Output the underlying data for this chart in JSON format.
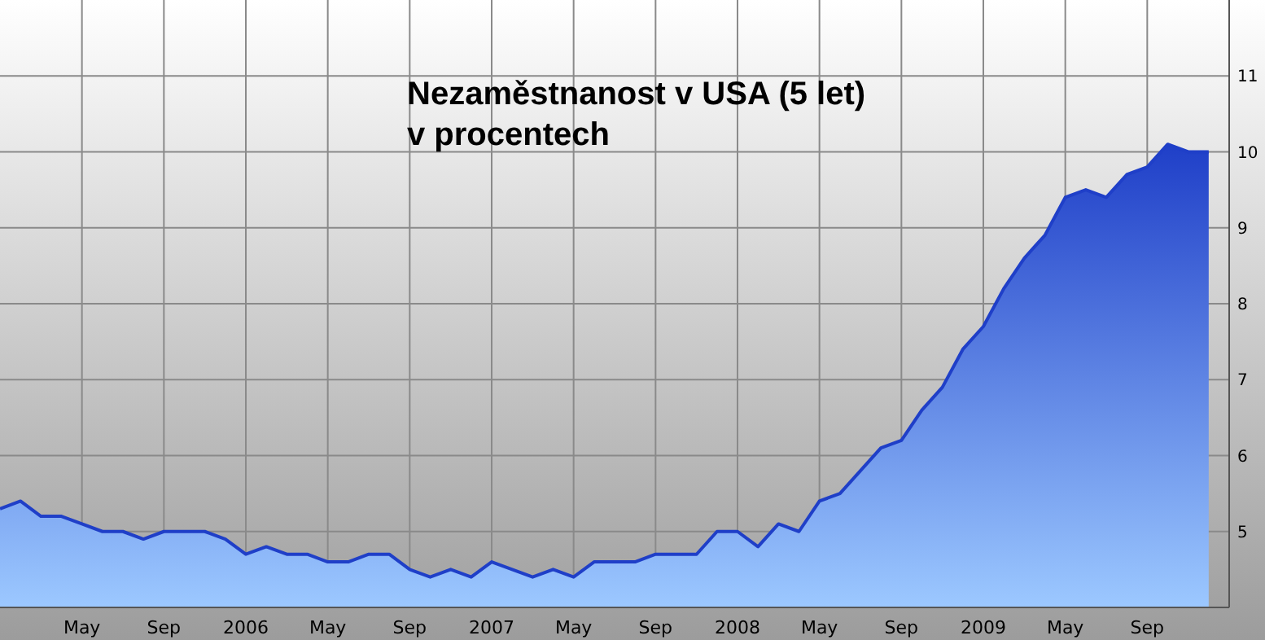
{
  "chart_data": {
    "type": "area",
    "title": "Nezaměstnanost v USA (5 let)",
    "subtitle": "v procentech",
    "x": [
      "2005-01",
      "2005-02",
      "2005-03",
      "2005-04",
      "2005-05",
      "2005-06",
      "2005-07",
      "2005-08",
      "2005-09",
      "2005-10",
      "2005-11",
      "2005-12",
      "2006-01",
      "2006-02",
      "2006-03",
      "2006-04",
      "2006-05",
      "2006-06",
      "2006-07",
      "2006-08",
      "2006-09",
      "2006-10",
      "2006-11",
      "2006-12",
      "2007-01",
      "2007-02",
      "2007-03",
      "2007-04",
      "2007-05",
      "2007-06",
      "2007-07",
      "2007-08",
      "2007-09",
      "2007-10",
      "2007-11",
      "2007-12",
      "2008-01",
      "2008-02",
      "2008-03",
      "2008-04",
      "2008-05",
      "2008-06",
      "2008-07",
      "2008-08",
      "2008-09",
      "2008-10",
      "2008-11",
      "2008-12",
      "2009-01",
      "2009-02",
      "2009-03",
      "2009-04",
      "2009-05",
      "2009-06",
      "2009-07",
      "2009-08",
      "2009-09",
      "2009-10",
      "2009-11",
      "2009-12"
    ],
    "series": [
      {
        "color": "#1f3fc8",
        "values": [
          5.3,
          5.4,
          5.2,
          5.2,
          5.1,
          5.0,
          5.0,
          4.9,
          5.0,
          5.0,
          5.0,
          4.9,
          4.7,
          4.8,
          4.7,
          4.7,
          4.6,
          4.6,
          4.7,
          4.7,
          4.5,
          4.4,
          4.5,
          4.4,
          4.6,
          4.5,
          4.4,
          4.5,
          4.4,
          4.6,
          4.6,
          4.6,
          4.7,
          4.7,
          4.7,
          5.0,
          5.0,
          4.8,
          5.1,
          5.0,
          5.4,
          5.5,
          5.8,
          6.1,
          6.2,
          6.6,
          6.9,
          7.4,
          7.7,
          8.2,
          8.6,
          8.9,
          9.4,
          9.5,
          9.4,
          9.7,
          9.8,
          10.1,
          10.0,
          10.0
        ]
      }
    ],
    "xlim": [
      "2005-01",
      "2010-01"
    ],
    "xticks": [
      {
        "value": "2005-05",
        "label": "May"
      },
      {
        "value": "2005-09",
        "label": "Sep"
      },
      {
        "value": "2006-01",
        "label": "2006"
      },
      {
        "value": "2006-05",
        "label": "May"
      },
      {
        "value": "2006-09",
        "label": "Sep"
      },
      {
        "value": "2007-01",
        "label": "2007"
      },
      {
        "value": "2007-05",
        "label": "May"
      },
      {
        "value": "2007-09",
        "label": "Sep"
      },
      {
        "value": "2008-01",
        "label": "2008"
      },
      {
        "value": "2008-05",
        "label": "May"
      },
      {
        "value": "2008-09",
        "label": "Sep"
      },
      {
        "value": "2009-01",
        "label": "2009"
      },
      {
        "value": "2009-05",
        "label": "May"
      },
      {
        "value": "2009-09",
        "label": "Sep"
      }
    ],
    "ylim": [
      4,
      12
    ],
    "yticks": [
      5,
      6,
      7,
      8,
      9,
      10,
      11
    ],
    "grid": true
  }
}
